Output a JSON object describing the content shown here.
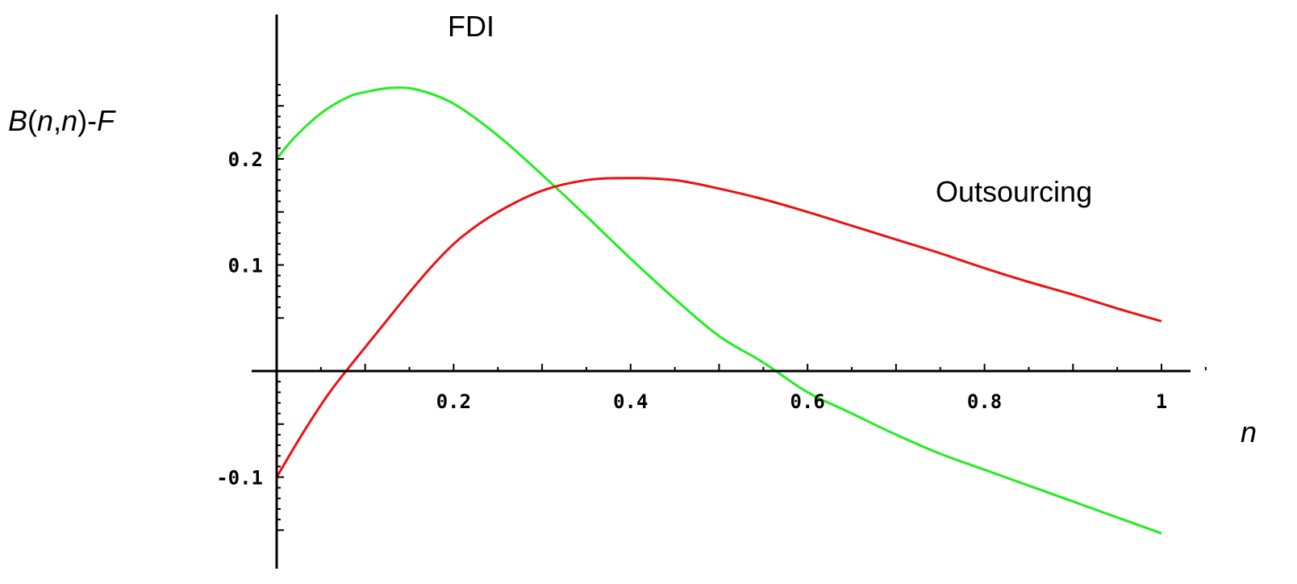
{
  "chart_data": {
    "type": "line",
    "ylabel_parts": [
      "B",
      "(",
      "n",
      ",",
      "n",
      ")-",
      "F"
    ],
    "xlabel": "n",
    "xlim": [
      0,
      1.05
    ],
    "ylim": [
      -0.155,
      0.27
    ],
    "x_ticks": [
      {
        "value": 0.2,
        "label": "0.2"
      },
      {
        "value": 0.4,
        "label": "0.4"
      },
      {
        "value": 0.6,
        "label": "0.6"
      },
      {
        "value": 0.8,
        "label": "0.8"
      },
      {
        "value": 1.0,
        "label": "1"
      }
    ],
    "y_ticks": [
      {
        "value": 0.2,
        "label": "0.2"
      },
      {
        "value": 0.1,
        "label": "0.1"
      },
      {
        "value": -0.1,
        "label": "-0.1"
      }
    ],
    "grid": false,
    "series": [
      {
        "name": "FDI",
        "color": "#22ee22",
        "x": [
          0,
          0.02,
          0.05,
          0.08,
          0.1,
          0.13,
          0.16,
          0.2,
          0.25,
          0.3,
          0.35,
          0.4,
          0.45,
          0.5,
          0.55,
          0.6,
          0.65,
          0.7,
          0.75,
          0.8,
          0.85,
          0.9,
          0.95,
          1.0
        ],
        "y": [
          0.2,
          0.22,
          0.243,
          0.258,
          0.263,
          0.267,
          0.265,
          0.252,
          0.222,
          0.185,
          0.146,
          0.106,
          0.068,
          0.033,
          0.008,
          -0.02,
          -0.04,
          -0.06,
          -0.078,
          -0.093,
          -0.108,
          -0.123,
          -0.138,
          -0.153
        ]
      },
      {
        "name": "Outsourcing",
        "color": "#ee1111",
        "x": [
          0,
          0.03,
          0.06,
          0.09,
          0.12,
          0.15,
          0.18,
          0.21,
          0.25,
          0.3,
          0.35,
          0.4,
          0.45,
          0.5,
          0.55,
          0.6,
          0.65,
          0.7,
          0.75,
          0.8,
          0.85,
          0.9,
          0.95,
          1.0
        ],
        "y": [
          -0.1,
          -0.058,
          -0.02,
          0.012,
          0.043,
          0.074,
          0.103,
          0.127,
          0.15,
          0.17,
          0.18,
          0.182,
          0.18,
          0.172,
          0.162,
          0.15,
          0.137,
          0.124,
          0.111,
          0.097,
          0.084,
          0.072,
          0.059,
          0.047
        ]
      }
    ]
  }
}
